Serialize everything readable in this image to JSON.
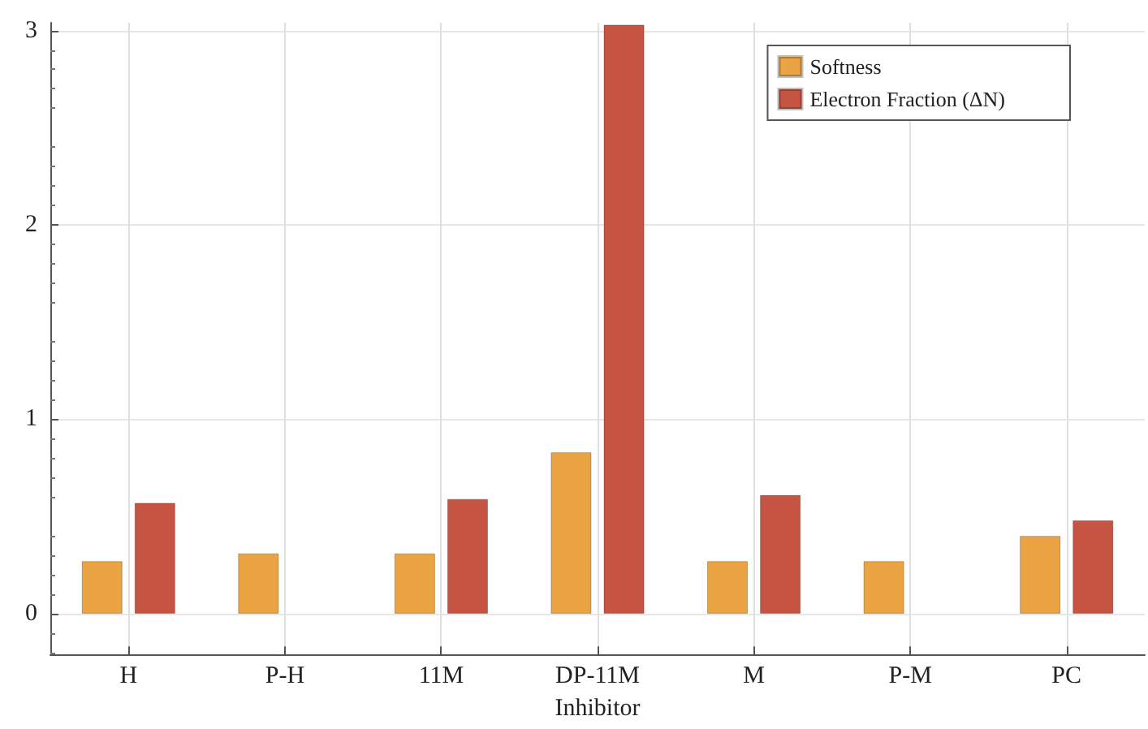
{
  "chart_data": {
    "type": "bar",
    "xlabel": "Inhibitor",
    "categories": [
      "H",
      "P-H",
      "11M",
      "DP-11M",
      "M",
      "P-M",
      "PC"
    ],
    "series": [
      {
        "name": "Softness",
        "color": "#eba443",
        "values": [
          0.27,
          0.31,
          0.31,
          0.83,
          0.27,
          0.27,
          0.4
        ]
      },
      {
        "name": "Electron Fraction (ΔN)",
        "color": "#c55442",
        "values": [
          0.57,
          null,
          0.59,
          3.03,
          0.61,
          null,
          0.48
        ]
      }
    ],
    "ylim": [
      -0.21,
      3.04
    ],
    "yticks": [
      0,
      1,
      2,
      3
    ],
    "grid": true,
    "legend": "top right"
  }
}
